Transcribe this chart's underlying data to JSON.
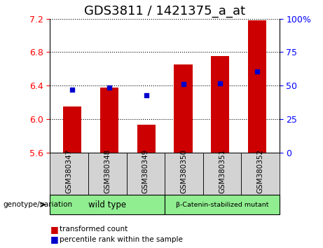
{
  "title": "GDS3811 / 1421375_a_at",
  "samples": [
    "GSM380347",
    "GSM380348",
    "GSM380349",
    "GSM380350",
    "GSM380351",
    "GSM380352"
  ],
  "bar_values": [
    6.15,
    6.38,
    5.93,
    6.65,
    6.75,
    7.18
  ],
  "bar_bottom": 5.6,
  "percentile_values": [
    6.35,
    6.38,
    6.28,
    6.42,
    6.43,
    6.57
  ],
  "ylim_left": [
    5.6,
    7.2
  ],
  "yticks_left": [
    5.6,
    6.0,
    6.4,
    6.8,
    7.2
  ],
  "ylim_right": [
    0,
    100
  ],
  "yticks_right": [
    0,
    25,
    50,
    75,
    100
  ],
  "bar_color": "#CC0000",
  "percentile_color": "#0000CC",
  "group_wt_label": "wild type",
  "group_mut_label": "β-Catenin-stabilized mutant",
  "group_color": "#90EE90",
  "group_header": "genotype/variation",
  "legend_bar_label": "transformed count",
  "legend_pct_label": "percentile rank within the sample",
  "title_fontsize": 13,
  "tick_fontsize": 9,
  "sample_label_color": "#D3D3D3",
  "bg_color": "#ffffff",
  "grid_color": "#000000"
}
